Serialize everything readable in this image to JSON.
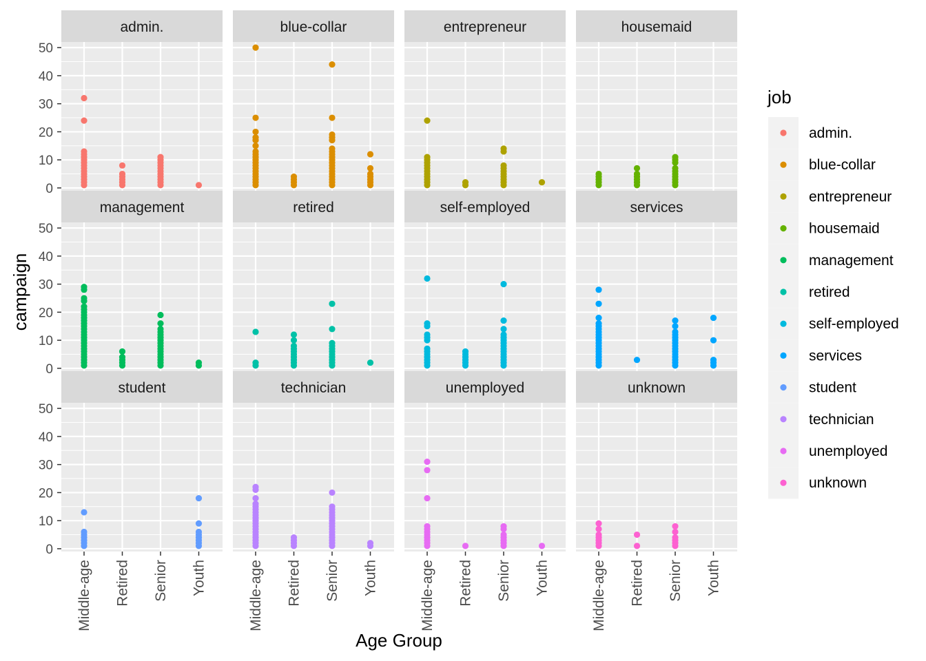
{
  "chart_data": {
    "type": "scatter",
    "xlabel": "Age Group",
    "ylabel": "campaign",
    "categories": [
      "Middle-age",
      "Retired",
      "Senior",
      "Youth"
    ],
    "ylim": [
      -1,
      52
    ],
    "yticks": [
      0,
      10,
      20,
      30,
      40,
      50
    ],
    "grid": true,
    "legend": {
      "title": "job",
      "position": "right"
    },
    "facets": [
      {
        "name": "admin.",
        "color": "#F8766D",
        "points": {
          "Middle-age": [
            1,
            2,
            3,
            4,
            5,
            6,
            7,
            8,
            9,
            10,
            11,
            12,
            13,
            24,
            32
          ],
          "Retired": [
            1,
            2,
            3,
            4,
            5,
            8
          ],
          "Senior": [
            1,
            2,
            3,
            4,
            5,
            6,
            7,
            8,
            9,
            10,
            11
          ],
          "Youth": [
            1
          ]
        }
      },
      {
        "name": "blue-collar",
        "color": "#DB8E00",
        "points": {
          "Middle-age": [
            1,
            2,
            3,
            4,
            5,
            6,
            7,
            8,
            9,
            10,
            11,
            12,
            13,
            15,
            17,
            18,
            20,
            25,
            50
          ],
          "Retired": [
            1,
            2,
            3,
            4
          ],
          "Senior": [
            1,
            2,
            3,
            4,
            5,
            6,
            7,
            8,
            9,
            10,
            11,
            12,
            13,
            14,
            17,
            18,
            19,
            25,
            44
          ],
          "Youth": [
            1,
            2,
            3,
            4,
            5,
            7,
            12
          ]
        }
      },
      {
        "name": "entrepreneur",
        "color": "#AEA200",
        "points": {
          "Middle-age": [
            1,
            2,
            3,
            4,
            5,
            6,
            7,
            8,
            9,
            10,
            11,
            24
          ],
          "Retired": [
            1,
            2
          ],
          "Senior": [
            1,
            2,
            3,
            4,
            5,
            6,
            7,
            8,
            13,
            14
          ],
          "Youth": [
            2
          ]
        }
      },
      {
        "name": "housemaid",
        "color": "#64B200",
        "points": {
          "Middle-age": [
            1,
            2,
            3,
            4,
            5
          ],
          "Retired": [
            1,
            2,
            3,
            4,
            5,
            7
          ],
          "Senior": [
            1,
            2,
            3,
            4,
            5,
            6,
            7,
            9,
            10,
            11
          ],
          "Youth": []
        }
      },
      {
        "name": "management",
        "color": "#00BD5C",
        "points": {
          "Middle-age": [
            1,
            2,
            3,
            4,
            5,
            6,
            7,
            8,
            9,
            10,
            11,
            12,
            13,
            14,
            15,
            16,
            17,
            18,
            19,
            20,
            21,
            22,
            24,
            25,
            28,
            29
          ],
          "Retired": [
            1,
            2,
            3,
            4,
            6
          ],
          "Senior": [
            1,
            2,
            3,
            4,
            5,
            6,
            7,
            8,
            9,
            10,
            11,
            12,
            13,
            14,
            16,
            19
          ],
          "Youth": [
            1,
            2
          ]
        }
      },
      {
        "name": "retired",
        "color": "#00C1A7",
        "points": {
          "Middle-age": [
            1,
            2,
            13
          ],
          "Retired": [
            1,
            2,
            3,
            4,
            5,
            6,
            7,
            8,
            10,
            12
          ],
          "Senior": [
            1,
            2,
            3,
            4,
            5,
            6,
            7,
            8,
            9,
            14,
            23
          ],
          "Youth": [
            2
          ]
        }
      },
      {
        "name": "self-employed",
        "color": "#00BADE",
        "points": {
          "Middle-age": [
            1,
            2,
            3,
            4,
            5,
            6,
            7,
            10,
            11,
            12,
            15,
            16,
            32
          ],
          "Retired": [
            1,
            2,
            3,
            4,
            5,
            6
          ],
          "Senior": [
            1,
            2,
            3,
            4,
            5,
            6,
            7,
            8,
            9,
            10,
            11,
            12,
            14,
            17,
            30
          ],
          "Youth": []
        }
      },
      {
        "name": "services",
        "color": "#00A6FF",
        "points": {
          "Middle-age": [
            1,
            2,
            3,
            4,
            5,
            6,
            7,
            8,
            9,
            10,
            11,
            12,
            13,
            14,
            15,
            16,
            18,
            23,
            28
          ],
          "Retired": [
            3
          ],
          "Senior": [
            1,
            2,
            3,
            4,
            5,
            6,
            7,
            8,
            9,
            10,
            11,
            12,
            13,
            15,
            17
          ],
          "Youth": [
            1,
            2,
            3,
            10,
            18
          ]
        }
      },
      {
        "name": "student",
        "color": "#619CFF",
        "points": {
          "Middle-age": [
            1,
            2,
            3,
            4,
            5,
            6,
            13
          ],
          "Retired": [],
          "Senior": [],
          "Youth": [
            1,
            2,
            3,
            4,
            5,
            6,
            9,
            18
          ]
        }
      },
      {
        "name": "technician",
        "color": "#B983FF",
        "points": {
          "Middle-age": [
            1,
            2,
            3,
            4,
            5,
            6,
            7,
            8,
            9,
            10,
            11,
            12,
            13,
            14,
            15,
            16,
            18,
            21,
            22
          ],
          "Retired": [
            1,
            2,
            3,
            4
          ],
          "Senior": [
            1,
            2,
            3,
            4,
            5,
            6,
            7,
            8,
            9,
            10,
            11,
            12,
            13,
            14,
            15,
            20
          ],
          "Youth": [
            1,
            2
          ]
        }
      },
      {
        "name": "unemployed",
        "color": "#E76BF3",
        "points": {
          "Middle-age": [
            1,
            2,
            3,
            4,
            5,
            6,
            7,
            8,
            18,
            28,
            31
          ],
          "Retired": [
            1
          ],
          "Senior": [
            1,
            2,
            3,
            4,
            5,
            7,
            8
          ],
          "Youth": [
            1
          ]
        }
      },
      {
        "name": "unknown",
        "color": "#FD61D1",
        "points": {
          "Middle-age": [
            1,
            2,
            3,
            4,
            5,
            7,
            9
          ],
          "Retired": [
            1,
            5
          ],
          "Senior": [
            1,
            2,
            3,
            4,
            6,
            8
          ],
          "Youth": []
        }
      }
    ]
  }
}
